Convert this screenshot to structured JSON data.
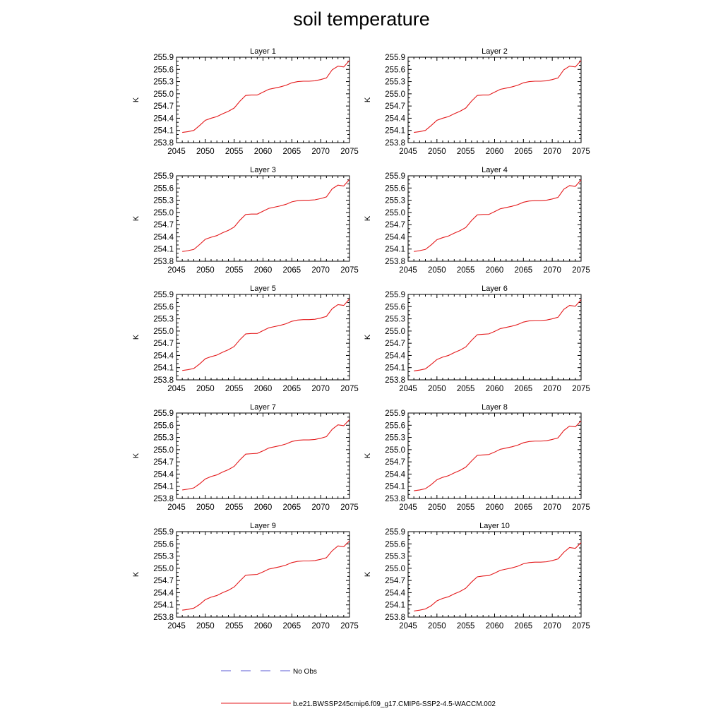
{
  "title": "soil temperature",
  "chart_data": {
    "type": "line",
    "layout": "5 rows x 2 columns of panels",
    "ylabel": "K",
    "xlim": [
      2045,
      2075
    ],
    "ylim": [
      253.8,
      255.9
    ],
    "x_ticks": [
      2045,
      2050,
      2055,
      2060,
      2065,
      2070,
      2075
    ],
    "y_ticks": [
      253.8,
      254.1,
      254.4,
      254.7,
      255.0,
      255.3,
      255.6,
      255.9
    ],
    "y_tick_labels": [
      "253.8",
      "254.1",
      "254.4",
      "254.7",
      "255.0",
      "255.3",
      "255.6",
      "255.9"
    ],
    "series_color": "#e41a1c",
    "obs_color": "#5b5bd6",
    "legend": {
      "placement": "bottom",
      "entries": [
        {
          "label": "No Obs",
          "style": "dashed",
          "color": "#5b5bd6"
        },
        {
          "label": "b.e21.BWSSP245cmip6.f09_g17.CMIP6-SSP2-4.5-WACCM.002",
          "style": "solid",
          "color": "#e41a1c"
        }
      ]
    },
    "x": [
      2046,
      2047,
      2048,
      2049,
      2050,
      2051,
      2052,
      2053,
      2054,
      2055,
      2056,
      2057,
      2058,
      2059,
      2060,
      2061,
      2062,
      2063,
      2064,
      2065,
      2066,
      2067,
      2068,
      2069,
      2070,
      2071,
      2072,
      2073,
      2074,
      2075
    ],
    "panels": [
      {
        "title": "Layer 1",
        "series": [
          {
            "name": "b.e21.BWSSP245cmip6.f09_g17.CMIP6-SSP2-4.5-WACCM.002",
            "values": [
              254.05,
              254.07,
              254.1,
              254.22,
              254.35,
              254.4,
              254.44,
              254.51,
              254.57,
              254.65,
              254.82,
              254.96,
              254.97,
              254.97,
              255.04,
              255.11,
              255.14,
              255.17,
              255.21,
              255.27,
              255.3,
              255.31,
              255.31,
              255.32,
              255.35,
              255.39,
              255.59,
              255.68,
              255.66,
              255.82
            ]
          }
        ]
      },
      {
        "title": "Layer 2",
        "series": [
          {
            "name": "b.e21.BWSSP245cmip6.f09_g17.CMIP6-SSP2-4.5-WACCM.002",
            "values": [
              254.05,
              254.07,
              254.1,
              254.22,
              254.35,
              254.4,
              254.44,
              254.51,
              254.57,
              254.65,
              254.82,
              254.96,
              254.97,
              254.97,
              255.04,
              255.11,
              255.14,
              255.17,
              255.21,
              255.27,
              255.3,
              255.31,
              255.31,
              255.32,
              255.35,
              255.39,
              255.59,
              255.68,
              255.66,
              255.82
            ]
          }
        ]
      },
      {
        "title": "Layer 3",
        "series": [
          {
            "name": "b.e21.BWSSP245cmip6.f09_g17.CMIP6-SSP2-4.5-WACCM.002",
            "values": [
              254.04,
              254.06,
              254.09,
              254.21,
              254.34,
              254.39,
              254.43,
              254.5,
              254.56,
              254.64,
              254.81,
              254.95,
              254.96,
              254.96,
              255.03,
              255.1,
              255.13,
              255.16,
              255.2,
              255.26,
              255.29,
              255.3,
              255.3,
              255.31,
              255.34,
              255.38,
              255.58,
              255.67,
              255.65,
              255.81
            ]
          }
        ]
      },
      {
        "title": "Layer 4",
        "series": [
          {
            "name": "b.e21.BWSSP245cmip6.f09_g17.CMIP6-SSP2-4.5-WACCM.002",
            "values": [
              254.04,
              254.06,
              254.09,
              254.2,
              254.33,
              254.38,
              254.42,
              254.49,
              254.55,
              254.63,
              254.8,
              254.94,
              254.95,
              254.95,
              255.02,
              255.09,
              255.12,
              255.15,
              255.19,
              255.25,
              255.28,
              255.29,
              255.29,
              255.3,
              255.33,
              255.37,
              255.57,
              255.66,
              255.64,
              255.8
            ]
          }
        ]
      },
      {
        "title": "Layer 5",
        "series": [
          {
            "name": "b.e21.BWSSP245cmip6.f09_g17.CMIP6-SSP2-4.5-WACCM.002",
            "values": [
              254.03,
              254.05,
              254.08,
              254.19,
              254.32,
              254.37,
              254.41,
              254.48,
              254.54,
              254.62,
              254.79,
              254.93,
              254.94,
              254.94,
              255.01,
              255.08,
              255.11,
              255.14,
              255.18,
              255.24,
              255.27,
              255.28,
              255.28,
              255.29,
              255.32,
              255.36,
              255.55,
              255.65,
              255.63,
              255.79
            ]
          }
        ]
      },
      {
        "title": "Layer 6",
        "series": [
          {
            "name": "b.e21.BWSSP245cmip6.f09_g17.CMIP6-SSP2-4.5-WACCM.002",
            "values": [
              254.02,
              254.04,
              254.07,
              254.18,
              254.3,
              254.36,
              254.4,
              254.47,
              254.53,
              254.61,
              254.77,
              254.91,
              254.92,
              254.93,
              254.99,
              255.06,
              255.09,
              255.12,
              255.16,
              255.22,
              255.25,
              255.26,
              255.26,
              255.27,
              255.3,
              255.34,
              255.53,
              255.63,
              255.61,
              255.77
            ]
          }
        ]
      },
      {
        "title": "Layer 7",
        "series": [
          {
            "name": "b.e21.BWSSP245cmip6.f09_g17.CMIP6-SSP2-4.5-WACCM.002",
            "values": [
              254.01,
              254.03,
              254.06,
              254.16,
              254.28,
              254.34,
              254.38,
              254.45,
              254.51,
              254.59,
              254.75,
              254.89,
              254.9,
              254.91,
              254.97,
              255.04,
              255.07,
              255.1,
              255.14,
              255.2,
              255.23,
              255.24,
              255.24,
              255.25,
              255.28,
              255.32,
              255.5,
              255.61,
              255.59,
              255.74
            ]
          }
        ]
      },
      {
        "title": "Layer 8",
        "series": [
          {
            "name": "b.e21.BWSSP245cmip6.f09_g17.CMIP6-SSP2-4.5-WACCM.002",
            "values": [
              253.99,
              254.01,
              254.04,
              254.14,
              254.26,
              254.32,
              254.36,
              254.43,
              254.49,
              254.57,
              254.72,
              254.86,
              254.87,
              254.88,
              254.94,
              255.01,
              255.04,
              255.07,
              255.11,
              255.17,
              255.2,
              255.21,
              255.21,
              255.22,
              255.25,
              255.29,
              255.47,
              255.58,
              255.56,
              255.71
            ]
          }
        ]
      },
      {
        "title": "Layer 9",
        "series": [
          {
            "name": "b.e21.BWSSP245cmip6.f09_g17.CMIP6-SSP2-4.5-WACCM.002",
            "values": [
              253.97,
              253.99,
              254.02,
              254.11,
              254.23,
              254.29,
              254.33,
              254.4,
              254.46,
              254.54,
              254.69,
              254.83,
              254.84,
              254.85,
              254.91,
              254.98,
              255.01,
              255.04,
              255.08,
              255.14,
              255.17,
              255.18,
              255.18,
              255.19,
              255.22,
              255.26,
              255.43,
              255.55,
              255.53,
              255.67
            ]
          }
        ]
      },
      {
        "title": "Layer 10",
        "series": [
          {
            "name": "b.e21.BWSSP245cmip6.f09_g17.CMIP6-SSP2-4.5-WACCM.002",
            "values": [
              253.95,
              253.97,
              254.0,
              254.08,
              254.2,
              254.26,
              254.3,
              254.37,
              254.43,
              254.51,
              254.66,
              254.79,
              254.81,
              254.82,
              254.88,
              254.95,
              254.98,
              255.01,
              255.05,
              255.11,
              255.14,
              255.15,
              255.15,
              255.16,
              255.19,
              255.23,
              255.39,
              255.51,
              255.49,
              255.63
            ]
          }
        ]
      }
    ]
  }
}
